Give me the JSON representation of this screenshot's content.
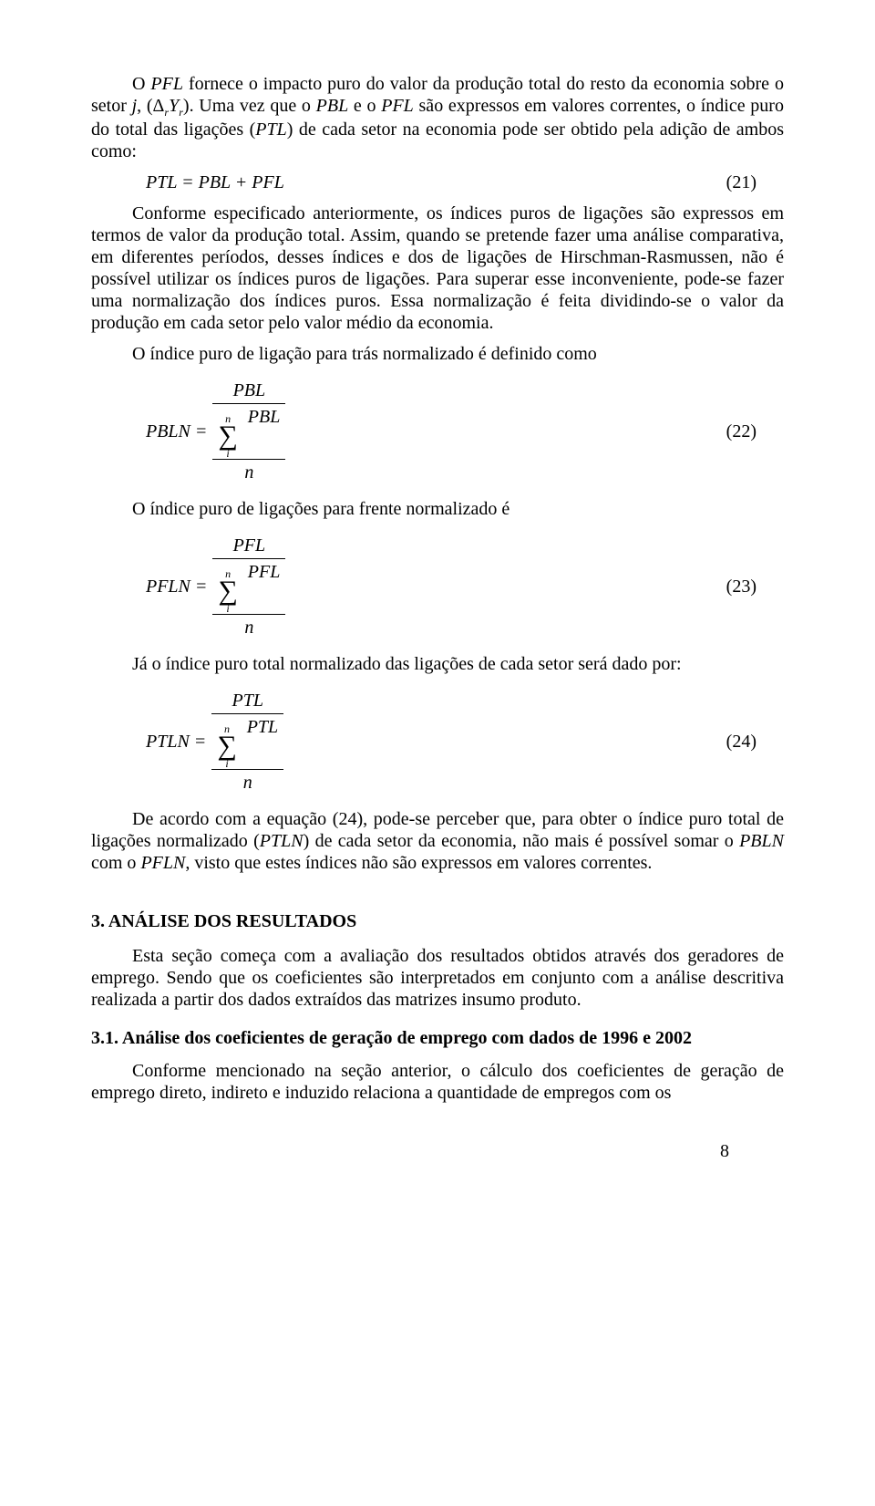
{
  "para1_lead": "O ",
  "para1_italic1": "PFL",
  "para1_mid": " fornece o impacto puro do valor da produção total do resto da economia sobre o setor ",
  "para1_italic2": "j",
  "para1_comma": ", ",
  "para1_expr_open": "(",
  "para1_expr_delta": "Δ",
  "para1_expr_r1": "r",
  "para1_expr_y": "Y",
  "para1_expr_r2": "r",
  "para1_expr_close": ")",
  "para1_after": ". Uma vez que o ",
  "para1_italic3": "PBL",
  "para1_and": " e o ",
  "para1_italic4": "PFL",
  "para1_mid2": " são expressos em valores correntes, o índice puro do total das ligações (",
  "para1_italic5": "PTL",
  "para1_mid3": ") de cada setor na economia pode ser obtido pela adição de ambos como:",
  "eq21_lhs": "PTL = PBL + PFL",
  "eq21_num": "(21)",
  "para2": "Conforme especificado anteriormente, os índices puros de ligações são expressos em termos de valor da produção total. Assim, quando se pretende fazer uma análise comparativa, em diferentes períodos, desses índices e dos de ligações de Hirschman-Rasmussen, não é possível utilizar os índices puros de ligações. Para superar esse inconveniente, pode-se fazer uma normalização dos índices puros. Essa normalização é feita dividindo-se o valor da produção em cada setor pelo valor médio da economia.",
  "para3": "O índice puro de ligação para trás normalizado é definido como",
  "eq22_lhs": "PBLN =",
  "eq22_num_sym": "PBL",
  "eq22_sum_top": "n",
  "eq22_sigma": "∑",
  "eq22_right": "PBL",
  "eq22_sum_bot": "i",
  "eq22_denN": "n",
  "eq22_num": "(22)",
  "para4": "O índice puro de ligações para frente normalizado é",
  "eq23_lhs": "PFLN =",
  "eq23_num_sym": "PFL",
  "eq23_right": "PFL",
  "eq23_num": "(23)",
  "para5": "Já o índice puro total normalizado das ligações de cada setor será dado por:",
  "eq24_lhs": "PTLN =",
  "eq24_num_sym": "PTL",
  "eq24_right": "PTL",
  "eq24_num": "(24)",
  "para6_a": "De acordo com a equação (24), pode-se perceber que, para obter o índice puro total de ligações normalizado (",
  "para6_it1": "PTLN",
  "para6_b": ") de cada setor da economia, não mais é possível somar o ",
  "para6_it2": "PBLN",
  "para6_c": " com o ",
  "para6_it3": "PFLN",
  "para6_d": ", visto que estes índices não são expressos em valores correntes.",
  "section3": "3. ANÁLISE DOS RESULTADOS",
  "para7": "Esta seção começa com a avaliação dos resultados obtidos através dos geradores de emprego. Sendo que os coeficientes são interpretados em conjunto com a análise descritiva realizada a partir dos dados extraídos das matrizes insumo produto.",
  "sub31": "3.1. Análise dos coeficientes de geração de emprego com dados de 1996 e 2002",
  "para8": "Conforme mencionado na seção anterior, o cálculo dos coeficientes de geração de emprego direto, indireto e induzido relaciona a quantidade de empregos com os",
  "pagenum": "8",
  "colors": {
    "text": "#000000",
    "bg": "#ffffff"
  }
}
